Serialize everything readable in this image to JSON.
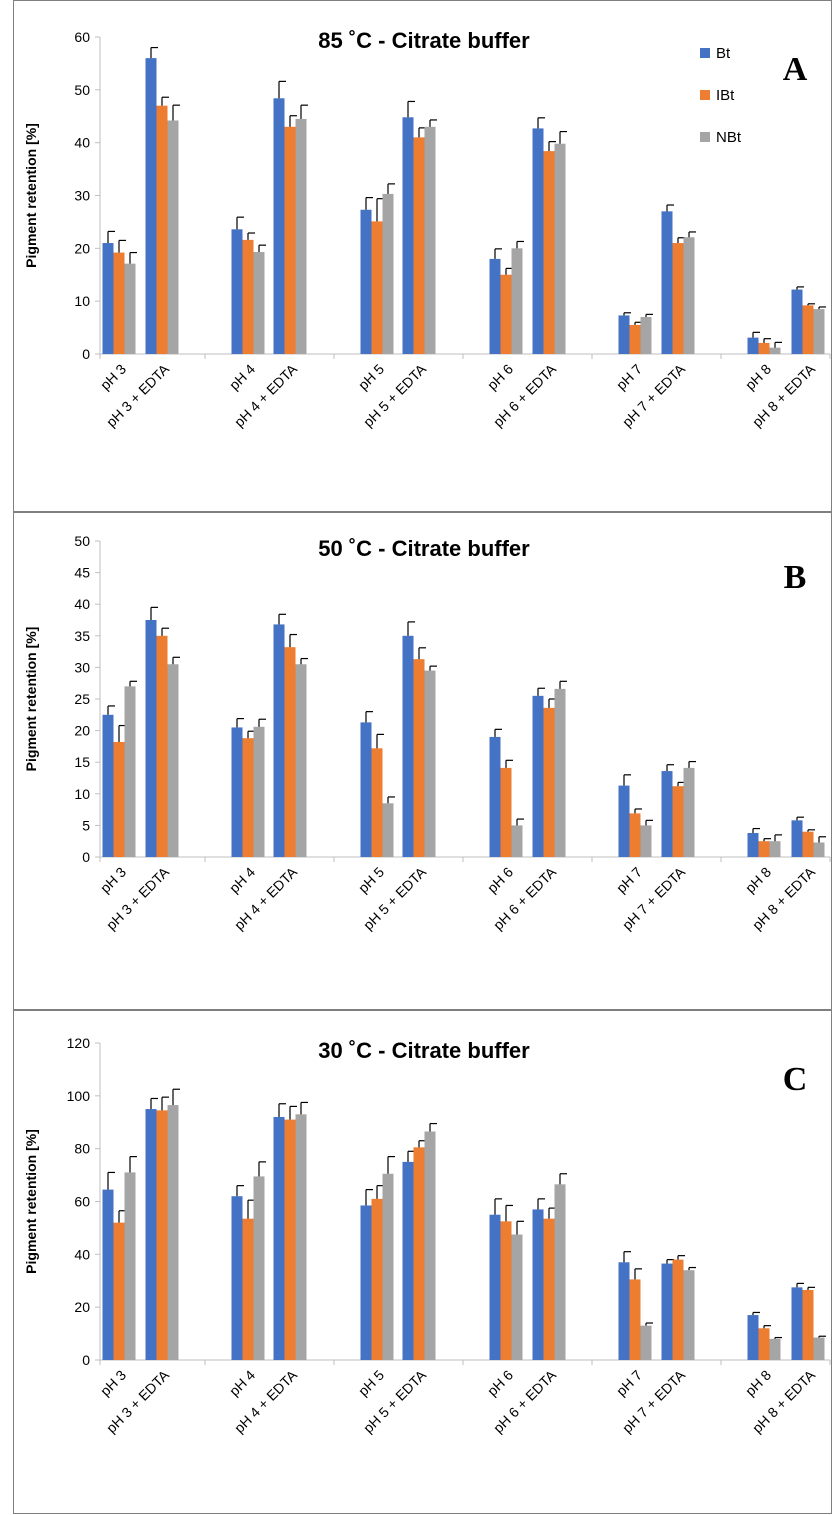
{
  "colors": {
    "Bt": "#4472c4",
    "IBt": "#ed7d31",
    "NBt": "#a5a5a5"
  },
  "chart_data": [
    {
      "type": "bar",
      "panel": "A",
      "title": "85 ˚C - Citrate buffer",
      "ylabel": "Pigment retention [%]",
      "ylim": [
        0,
        60
      ],
      "yticks": [
        0,
        10,
        20,
        30,
        40,
        50,
        60
      ],
      "grid": false,
      "legend": "top-right",
      "categories": [
        "pH 3",
        "pH 3 + EDTA",
        "pH 4",
        "pH 4 + EDTA",
        "pH 5",
        "pH 5 + EDTA",
        "pH 6",
        "pH 6 + EDTA",
        "pH 7",
        "pH 7 + EDTA",
        "pH 8",
        "pH 8 + EDTA"
      ],
      "series": [
        {
          "name": "Bt",
          "values": [
            21,
            56,
            23.6,
            48.4,
            27.3,
            44.8,
            18,
            42.7,
            7.3,
            27,
            3.1,
            12.2
          ],
          "errors": [
            2.2,
            2,
            2.3,
            3.2,
            2.3,
            3,
            1.9,
            2,
            0.5,
            1.2,
            1,
            0.5
          ]
        },
        {
          "name": "IBt",
          "values": [
            19.2,
            47,
            21.6,
            43,
            25.1,
            41,
            15,
            38.4,
            5.5,
            21,
            2.1,
            9.2
          ],
          "errors": [
            2.3,
            1.6,
            1.3,
            2.1,
            4.3,
            1.8,
            1.2,
            1.8,
            0.5,
            1,
            0.8,
            0.3
          ]
        },
        {
          "name": "NBt",
          "values": [
            17.1,
            44.2,
            19.3,
            44.5,
            30.3,
            43,
            20,
            39.8,
            7,
            22.1,
            1.2,
            8.5
          ],
          "errors": [
            2.1,
            2.9,
            1.3,
            2.6,
            1.9,
            1.3,
            1.3,
            2.3,
            0.5,
            1,
            1,
            0.4
          ]
        }
      ]
    },
    {
      "type": "bar",
      "panel": "B",
      "title": "50 ˚C - Citrate buffer",
      "ylabel": "Pigment retention [%]",
      "ylim": [
        0,
        50
      ],
      "yticks": [
        0,
        5,
        10,
        15,
        20,
        25,
        30,
        35,
        40,
        45,
        50
      ],
      "grid": false,
      "categories": [
        "pH 3",
        "pH 3 + EDTA",
        "pH 4",
        "pH 4 + EDTA",
        "pH 5",
        "pH 5 + EDTA",
        "pH 6",
        "pH 6 + EDTA",
        "pH 7",
        "pH 7 + EDTA",
        "pH 8",
        "pH 8 + EDTA"
      ],
      "series": [
        {
          "name": "Bt",
          "values": [
            22.5,
            37.5,
            20.5,
            36.8,
            21.3,
            35,
            19,
            25.5,
            11.3,
            13.6,
            3.8,
            5.8
          ],
          "errors": [
            1.4,
            2,
            1.4,
            1.6,
            1.7,
            2.2,
            1.2,
            1.2,
            1.7,
            1,
            0.7,
            0.5
          ]
        },
        {
          "name": "IBt",
          "values": [
            18.2,
            35,
            18.8,
            33.2,
            17.2,
            31.3,
            14.1,
            23.6,
            6.9,
            11.2,
            2.5,
            4
          ],
          "errors": [
            2.6,
            1.2,
            1.1,
            2,
            2.2,
            1.8,
            1.2,
            1.4,
            0.7,
            0.6,
            0.4,
            0.3
          ]
        },
        {
          "name": "NBt",
          "values": [
            27,
            30.5,
            20.6,
            30.5,
            8.5,
            29.5,
            5,
            26.6,
            5,
            14.1,
            2.5,
            2.3
          ],
          "errors": [
            0.8,
            1.1,
            1.2,
            0.9,
            1,
            0.7,
            1,
            1.2,
            0.8,
            1,
            1,
            0.9
          ]
        }
      ]
    },
    {
      "type": "bar",
      "panel": "C",
      "title": "30 ˚C - Citrate buffer",
      "ylabel": "Pigment retention [%]",
      "ylim": [
        0,
        120
      ],
      "yticks": [
        0,
        20,
        40,
        60,
        80,
        100,
        120
      ],
      "grid": false,
      "categories": [
        "pH 3",
        "pH 3 + EDTA",
        "pH 4",
        "pH 4 + EDTA",
        "pH 5",
        "pH 5 + EDTA",
        "pH 6",
        "pH 6 + EDTA",
        "pH 7",
        "pH 7 + EDTA",
        "pH 8",
        "pH 8 + EDTA"
      ],
      "series": [
        {
          "name": "Bt",
          "values": [
            64.5,
            95,
            62,
            92,
            58.5,
            75,
            55,
            57,
            37,
            36.5,
            17,
            27.5
          ],
          "errors": [
            6.5,
            4,
            4,
            5,
            6,
            4,
            6,
            4,
            4,
            1.5,
            1,
            1.5
          ]
        },
        {
          "name": "IBt",
          "values": [
            52,
            94.5,
            53.5,
            91,
            61,
            80.5,
            52.5,
            53.5,
            30.5,
            38,
            12,
            26.5
          ],
          "errors": [
            4.5,
            5,
            7,
            5,
            5,
            2.5,
            6,
            4,
            4,
            1.5,
            1,
            1
          ]
        },
        {
          "name": "NBt",
          "values": [
            71,
            96.5,
            69.5,
            93,
            70.5,
            86.5,
            47.5,
            66.5,
            13,
            34,
            8,
            8.5
          ],
          "errors": [
            6,
            6,
            5.5,
            4.5,
            6.5,
            3,
            5,
            4,
            1,
            1,
            0.5,
            0.5
          ]
        }
      ]
    }
  ]
}
